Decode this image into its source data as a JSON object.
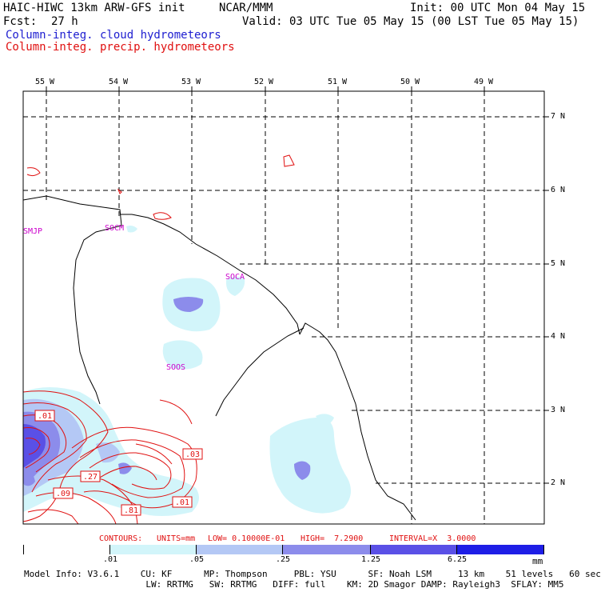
{
  "header": {
    "model_title": "HAIC-HIWC 13km ARW-GFS init",
    "agency": "NCAR/MMM",
    "init": "Init: 00 UTC Mon 04 May 15",
    "fcst_label": "Fcst:",
    "fcst_value": "27 h",
    "valid": "Valid: 03 UTC Tue 05 May 15 (00 LST Tue 05 May 15)",
    "field1": "Column-integ. cloud hydrometeors",
    "field2": "Column-integ. precip. hydrometeors",
    "field1_color": "#1d1dd0",
    "field2_color": "#e01010"
  },
  "map": {
    "lon_labels": [
      "55 W",
      "54 W",
      "53 W",
      "52 W",
      "51 W",
      "50 W",
      "49 W"
    ],
    "lat_labels": [
      "7 N",
      "6 N",
      "5 N",
      "4 N",
      "3 N",
      "2 N"
    ],
    "stations": [
      "SMJP",
      "SOCM",
      "SOCA",
      "SOOS"
    ],
    "station_color": "#cc00cc",
    "coast_color": "#000000",
    "contour_color": "#e01010",
    "contour_labels": [
      ".01",
      ".03",
      ".27",
      ".09",
      ".81",
      ".01"
    ]
  },
  "contour_info": {
    "contours": "CONTOURS:",
    "units": "UNITS=mm",
    "low": "LOW= 0.10000E-01",
    "high": "HIGH=  7.2900",
    "interval": "INTERVAL=X  3.0000"
  },
  "color_key": {
    "ticks": [
      ".01",
      ".05",
      ".25",
      "1.25",
      "6.25"
    ],
    "unit": "mm",
    "colors": [
      "#ffffff",
      "#d2f5fa",
      "#b4c8f5",
      "#8c8ceb",
      "#5a50e6",
      "#1e1ee6"
    ]
  },
  "model_info": {
    "line1": "Model Info: V3.6.1    CU: KF      MP: Thompson     PBL: YSU      SF: Noah LSM     13 km    51 levels   60 sec",
    "line2": "                       LW: RRTMG   SW: RRTMG   DIFF: full    KM: 2D Smagor DAMP: Rayleigh3  SFLAY: MM5"
  }
}
